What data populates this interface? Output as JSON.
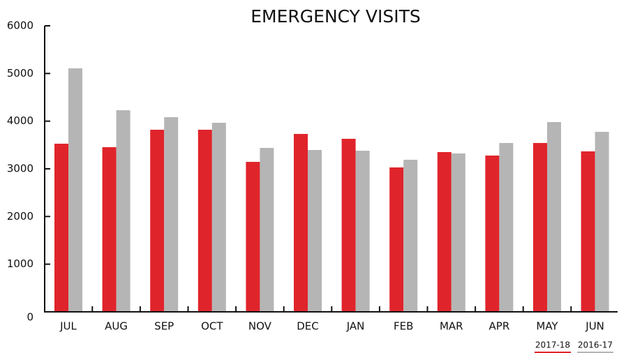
{
  "chart_data": {
    "type": "bar",
    "title": "EMERGENCY VISITS",
    "categories": [
      "JUL",
      "AUG",
      "SEP",
      "OCT",
      "NOV",
      "DEC",
      "JAN",
      "FEB",
      "MAR",
      "APR",
      "MAY",
      "JUN"
    ],
    "series": [
      {
        "name": "2017-18",
        "color": "#e0242b",
        "values": [
          3527,
          3454,
          3820,
          3820,
          3146,
          3732,
          3630,
          3029,
          3351,
          3278,
          3542,
          3366
        ]
      },
      {
        "name": "2016-17",
        "color": "#b5b5b5",
        "values": [
          5108,
          4229,
          4083,
          3966,
          3439,
          3395,
          3380,
          3190,
          3322,
          3542,
          3981,
          3776
        ]
      }
    ],
    "ylim": [
      0,
      6000
    ],
    "yticks": [
      0,
      1000,
      2000,
      3000,
      4000,
      5000,
      6000
    ],
    "grid": false,
    "legend": "bottom-right"
  }
}
